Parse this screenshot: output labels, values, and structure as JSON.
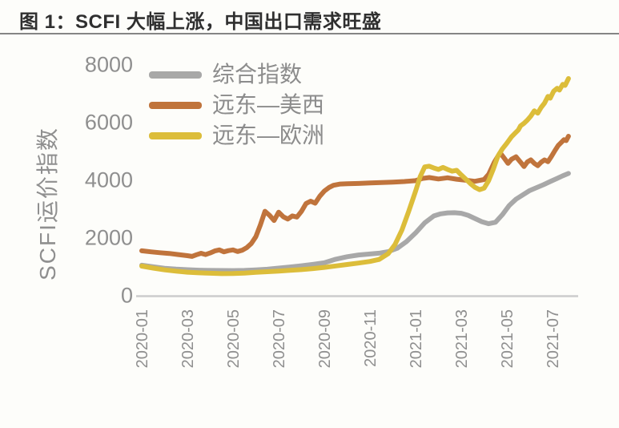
{
  "figure": {
    "title": "图 1：SCFI 大幅上涨，中国出口需求旺盛"
  },
  "chart_data": {
    "type": "line",
    "title": "图 1：SCFI 大幅上涨，中国出口需求旺盛",
    "xlabel": "",
    "ylabel": "SCFI运价指数",
    "ylim": [
      0,
      8000
    ],
    "y_ticks": [
      0,
      2000,
      4000,
      6000,
      8000
    ],
    "x_ticks": [
      {
        "label": "2020-01",
        "month": 0
      },
      {
        "label": "2020-03",
        "month": 2
      },
      {
        "label": "2020-05",
        "month": 4
      },
      {
        "label": "2020-07",
        "month": 6
      },
      {
        "label": "2020-09",
        "month": 8
      },
      {
        "label": "2020-11",
        "month": 10
      },
      {
        "label": "2021-01",
        "month": 12
      },
      {
        "label": "2021-03",
        "month": 14
      },
      {
        "label": "2021-05",
        "month": 16
      },
      {
        "label": "2021-07",
        "month": 18
      }
    ],
    "x_unit": "months since 2020-01",
    "x_range": [
      0,
      18.7
    ],
    "grid": false,
    "legend_position": "upper-left",
    "axis_color": "#cccccc",
    "tick_color": "#8f8f8f",
    "series": [
      {
        "name": "综合指数",
        "color": "#a8a8a8",
        "points": [
          [
            0,
            1030
          ],
          [
            0.5,
            975
          ],
          [
            1,
            925
          ],
          [
            1.5,
            895
          ],
          [
            2,
            875
          ],
          [
            2.5,
            858
          ],
          [
            3,
            850
          ],
          [
            3.5,
            846
          ],
          [
            4,
            844
          ],
          [
            4.5,
            851
          ],
          [
            5,
            866
          ],
          [
            5.5,
            892
          ],
          [
            6,
            930
          ],
          [
            6.5,
            970
          ],
          [
            7,
            1012
          ],
          [
            7.5,
            1058
          ],
          [
            8,
            1115
          ],
          [
            8.5,
            1240
          ],
          [
            9,
            1325
          ],
          [
            9.5,
            1385
          ],
          [
            10,
            1420
          ],
          [
            10.4,
            1448
          ],
          [
            10.8,
            1500
          ],
          [
            11.2,
            1620
          ],
          [
            11.6,
            1850
          ],
          [
            12,
            2150
          ],
          [
            12.4,
            2500
          ],
          [
            12.8,
            2740
          ],
          [
            13.1,
            2810
          ],
          [
            13.4,
            2845
          ],
          [
            13.7,
            2850
          ],
          [
            14,
            2830
          ],
          [
            14.3,
            2760
          ],
          [
            14.6,
            2650
          ],
          [
            14.9,
            2540
          ],
          [
            15.2,
            2470
          ],
          [
            15.5,
            2520
          ],
          [
            15.8,
            2780
          ],
          [
            16.1,
            3100
          ],
          [
            16.4,
            3320
          ],
          [
            16.7,
            3470
          ],
          [
            17,
            3620
          ],
          [
            17.3,
            3720
          ],
          [
            17.6,
            3820
          ],
          [
            17.9,
            3930
          ],
          [
            18.2,
            4040
          ],
          [
            18.45,
            4130
          ],
          [
            18.7,
            4210
          ]
        ]
      },
      {
        "name": "远东—美西",
        "color": "#c0743c",
        "points": [
          [
            0,
            1530
          ],
          [
            0.4,
            1495
          ],
          [
            0.8,
            1465
          ],
          [
            1.2,
            1440
          ],
          [
            1.6,
            1400
          ],
          [
            2,
            1360
          ],
          [
            2.2,
            1335
          ],
          [
            2.4,
            1395
          ],
          [
            2.6,
            1445
          ],
          [
            2.8,
            1400
          ],
          [
            3,
            1455
          ],
          [
            3.2,
            1525
          ],
          [
            3.4,
            1560
          ],
          [
            3.6,
            1495
          ],
          [
            3.8,
            1535
          ],
          [
            4,
            1560
          ],
          [
            4.2,
            1505
          ],
          [
            4.4,
            1550
          ],
          [
            4.6,
            1640
          ],
          [
            4.8,
            1780
          ],
          [
            5,
            2020
          ],
          [
            5.2,
            2430
          ],
          [
            5.4,
            2900
          ],
          [
            5.6,
            2760
          ],
          [
            5.8,
            2580
          ],
          [
            6,
            2870
          ],
          [
            6.2,
            2710
          ],
          [
            6.4,
            2630
          ],
          [
            6.6,
            2740
          ],
          [
            6.8,
            2700
          ],
          [
            7,
            2900
          ],
          [
            7.2,
            3170
          ],
          [
            7.4,
            3250
          ],
          [
            7.6,
            3180
          ],
          [
            7.8,
            3420
          ],
          [
            8,
            3600
          ],
          [
            8.2,
            3720
          ],
          [
            8.4,
            3800
          ],
          [
            8.7,
            3845
          ],
          [
            9,
            3855
          ],
          [
            9.5,
            3865
          ],
          [
            10,
            3880
          ],
          [
            10.5,
            3895
          ],
          [
            11,
            3910
          ],
          [
            11.5,
            3930
          ],
          [
            12,
            3960
          ],
          [
            12.3,
            4040
          ],
          [
            12.6,
            4070
          ],
          [
            13,
            4020
          ],
          [
            13.4,
            4060
          ],
          [
            13.8,
            4010
          ],
          [
            14.2,
            3975
          ],
          [
            14.6,
            3940
          ],
          [
            15,
            4000
          ],
          [
            15.2,
            4180
          ],
          [
            15.45,
            4600
          ],
          [
            15.7,
            4930
          ],
          [
            15.9,
            4720
          ],
          [
            16.05,
            4560
          ],
          [
            16.2,
            4700
          ],
          [
            16.4,
            4790
          ],
          [
            16.6,
            4600
          ],
          [
            16.75,
            4450
          ],
          [
            16.9,
            4610
          ],
          [
            17.05,
            4680
          ],
          [
            17.2,
            4560
          ],
          [
            17.35,
            4480
          ],
          [
            17.5,
            4600
          ],
          [
            17.65,
            4680
          ],
          [
            17.8,
            4620
          ],
          [
            17.95,
            4800
          ],
          [
            18.1,
            5000
          ],
          [
            18.25,
            5180
          ],
          [
            18.4,
            5300
          ],
          [
            18.5,
            5380
          ],
          [
            18.6,
            5350
          ],
          [
            18.7,
            5500
          ]
        ]
      },
      {
        "name": "远东—欧洲",
        "color": "#dcbd3a",
        "points": [
          [
            0,
            1000
          ],
          [
            0.5,
            930
          ],
          [
            1,
            870
          ],
          [
            1.5,
            825
          ],
          [
            2,
            790
          ],
          [
            2.5,
            768
          ],
          [
            3,
            752
          ],
          [
            3.5,
            740
          ],
          [
            4,
            742
          ],
          [
            4.5,
            756
          ],
          [
            5,
            782
          ],
          [
            5.5,
            806
          ],
          [
            6,
            828
          ],
          [
            6.5,
            852
          ],
          [
            7,
            878
          ],
          [
            7.5,
            915
          ],
          [
            8,
            955
          ],
          [
            8.5,
            1005
          ],
          [
            9,
            1055
          ],
          [
            9.5,
            1105
          ],
          [
            10,
            1160
          ],
          [
            10.4,
            1230
          ],
          [
            10.8,
            1430
          ],
          [
            11.1,
            1750
          ],
          [
            11.4,
            2250
          ],
          [
            11.7,
            2900
          ],
          [
            12,
            3600
          ],
          [
            12.2,
            4100
          ],
          [
            12.4,
            4440
          ],
          [
            12.6,
            4460
          ],
          [
            12.8,
            4400
          ],
          [
            13,
            4350
          ],
          [
            13.2,
            4420
          ],
          [
            13.4,
            4350
          ],
          [
            13.6,
            4290
          ],
          [
            13.8,
            4320
          ],
          [
            14,
            4160
          ],
          [
            14.2,
            4010
          ],
          [
            14.4,
            3860
          ],
          [
            14.6,
            3730
          ],
          [
            14.8,
            3650
          ],
          [
            15,
            3700
          ],
          [
            15.2,
            3960
          ],
          [
            15.4,
            4350
          ],
          [
            15.6,
            4800
          ],
          [
            15.8,
            5060
          ],
          [
            16,
            5260
          ],
          [
            16.2,
            5480
          ],
          [
            16.35,
            5600
          ],
          [
            16.5,
            5720
          ],
          [
            16.6,
            5860
          ],
          [
            16.75,
            5950
          ],
          [
            16.9,
            6060
          ],
          [
            17.05,
            6200
          ],
          [
            17.2,
            6380
          ],
          [
            17.35,
            6300
          ],
          [
            17.5,
            6500
          ],
          [
            17.65,
            6650
          ],
          [
            17.8,
            6880
          ],
          [
            17.9,
            6820
          ],
          [
            18.05,
            7060
          ],
          [
            18.2,
            7160
          ],
          [
            18.3,
            7100
          ],
          [
            18.45,
            7300
          ],
          [
            18.55,
            7260
          ],
          [
            18.7,
            7500
          ]
        ]
      }
    ]
  }
}
